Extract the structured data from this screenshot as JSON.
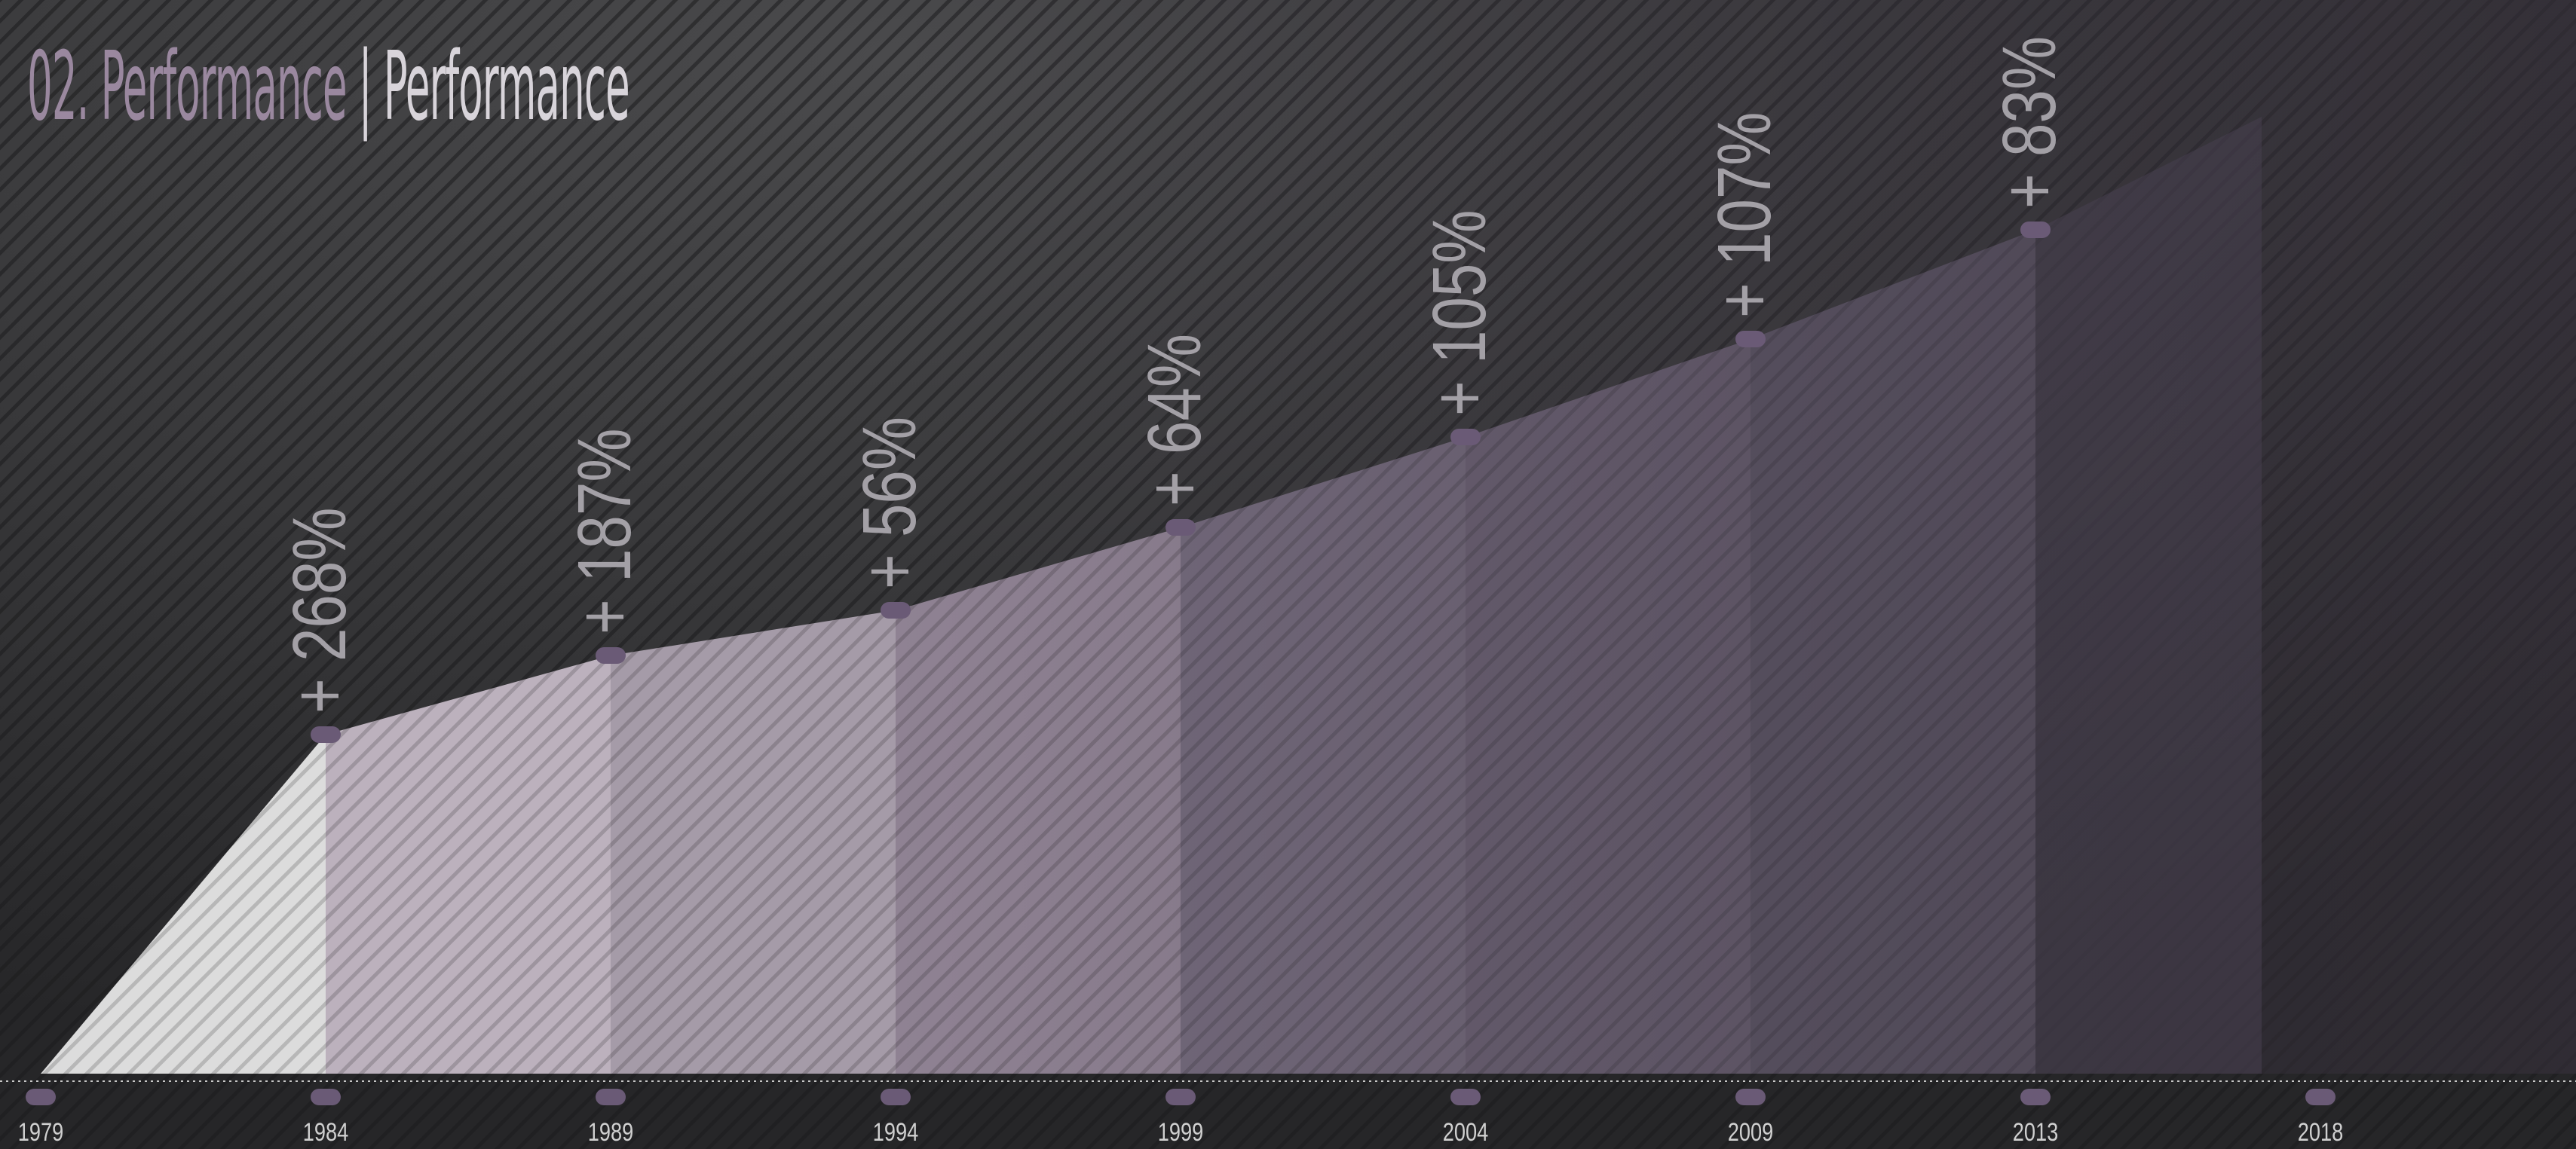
{
  "page": {
    "title_prefix": "02. Performance",
    "title_separator": "|",
    "title_suffix": "Performance"
  },
  "colors": {
    "background": "#2c2c2e",
    "stripe": "#1b1b1d",
    "marker": "#6a5a76",
    "label_growth": "#a3a0a6",
    "label_year": "#d0d0d0",
    "title_accent": "#9a889f",
    "segment_fills": [
      "#dcdcdc",
      "#bcb1bd",
      "#a59ba8",
      "#8f8293",
      "#746a7c",
      "#6b6173",
      "#5f5868",
      "#4f4858"
    ]
  },
  "chart_data": {
    "type": "area",
    "x": [
      "1979",
      "1984",
      "1989",
      "1994",
      "1999",
      "2004",
      "2009",
      "2013",
      "2018"
    ],
    "values": [
      0,
      450,
      555,
      615,
      725,
      845,
      975,
      1120,
      null
    ],
    "growth_labels": [
      "",
      "+ 268%",
      "+ 187%",
      "+ 56%",
      "+ 64%",
      "+ 105%",
      "+ 107%",
      "+ 83%",
      ""
    ],
    "title": "",
    "xlabel": "",
    "ylabel": "",
    "grid": false,
    "legend": "none"
  }
}
